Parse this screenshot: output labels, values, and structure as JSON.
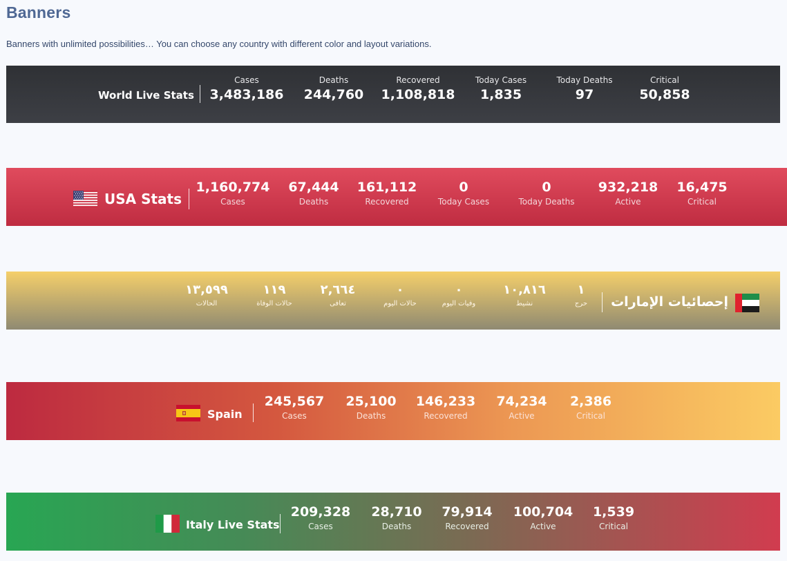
{
  "page": {
    "title": "Banners",
    "description": "Banners with unlimited possibilities… You can choose any country with different color and layout variations."
  },
  "world": {
    "title": "World Live Stats",
    "stats": [
      {
        "label": "Cases",
        "value": "3,483,186"
      },
      {
        "label": "Deaths",
        "value": "244,760"
      },
      {
        "label": "Recovered",
        "value": "1,108,818"
      },
      {
        "label": "Today Cases",
        "value": "1,835"
      },
      {
        "label": "Today Deaths",
        "value": "97"
      },
      {
        "label": "Critical",
        "value": "50,858"
      }
    ]
  },
  "usa": {
    "title": "USA Stats",
    "flag_icon": "usa-flag-icon",
    "stats": [
      {
        "label": "Cases",
        "value": "1,160,774"
      },
      {
        "label": "Deaths",
        "value": "67,444"
      },
      {
        "label": "Recovered",
        "value": "161,112"
      },
      {
        "label": "Today Cases",
        "value": "0"
      },
      {
        "label": "Today Deaths",
        "value": "0"
      },
      {
        "label": "Active",
        "value": "932,218"
      },
      {
        "label": "Critical",
        "value": "16,475"
      }
    ]
  },
  "uae": {
    "title": "إحصائيات الإمارات",
    "flag_icon": "uae-flag-icon",
    "stats": [
      {
        "label": "حرج",
        "value": "١"
      },
      {
        "label": "نشيط",
        "value": "١٠,٨١٦"
      },
      {
        "label": "وفيات اليوم",
        "value": "٠"
      },
      {
        "label": "حالات اليوم",
        "value": "٠"
      },
      {
        "label": "تعافى",
        "value": "٢,٦٦٤"
      },
      {
        "label": "حالات الوفاة",
        "value": "١١٩"
      },
      {
        "label": "الحالات",
        "value": "١٣,٥٩٩"
      }
    ]
  },
  "spain": {
    "title": "Spain",
    "flag_icon": "spain-flag-icon",
    "stats": [
      {
        "label": "Cases",
        "value": "245,567"
      },
      {
        "label": "Deaths",
        "value": "25,100"
      },
      {
        "label": "Recovered",
        "value": "146,233"
      },
      {
        "label": "Active",
        "value": "74,234"
      },
      {
        "label": "Critical",
        "value": "2,386"
      }
    ]
  },
  "italy": {
    "title": "Italy Live Stats",
    "flag_icon": "italy-flag-icon",
    "stats": [
      {
        "label": "Cases",
        "value": "209,328"
      },
      {
        "label": "Deaths",
        "value": "28,710"
      },
      {
        "label": "Recovered",
        "value": "79,914"
      },
      {
        "label": "Active",
        "value": "100,704"
      },
      {
        "label": "Critical",
        "value": "1,539"
      }
    ]
  },
  "colors": {
    "title": "#4f6894",
    "world_bg": "#34363b",
    "usa_bg": "#d63d51",
    "uae_bg_top": "#f5cf6a",
    "spain_start": "#bd2a40",
    "spain_end": "#fbcb63",
    "italy_start": "#28a653",
    "italy_end": "#d13c4f"
  }
}
